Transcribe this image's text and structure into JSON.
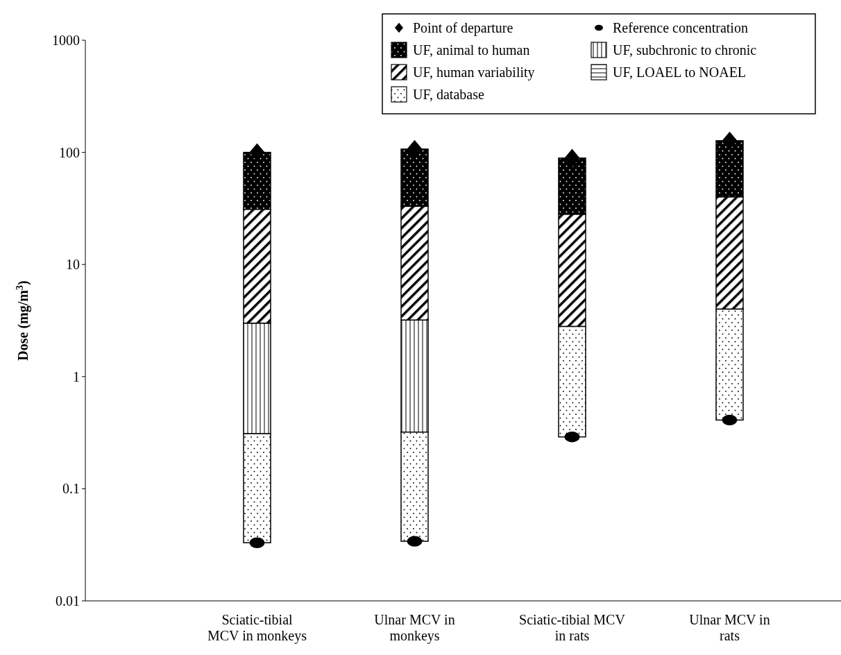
{
  "chart_data": {
    "type": "bar",
    "ylabel": "Dose (mg/m$^{3}$)",
    "categories": [
      "Sciatic-tibial\nMCV in monkeys",
      "Ulnar MCV in\nmonkeys",
      "Sciatic-tibial MCV\nin rats",
      "Ulnar MCV in\nrats"
    ],
    "log": "y",
    "ylim": [
      0.01,
      1000
    ],
    "yticks": [
      0.01,
      0.1,
      1,
      10,
      100,
      1000
    ],
    "grid": false,
    "legend": "top right",
    "series": [
      {
        "name": "Point of departure",
        "type": "scatter",
        "marker": "diamond",
        "color": "#000000",
        "values": [
          100,
          107,
          89,
          127
        ]
      },
      {
        "name": "Reference concentration",
        "type": "scatter",
        "marker": "circle",
        "color": "#000000",
        "values": [
          0.033,
          0.034,
          0.29,
          0.41
        ]
      },
      {
        "name": "UF, animal to human",
        "color": "#000000",
        "base": [
          31,
          33,
          28,
          40
        ],
        "values": [
          69,
          74,
          61,
          87
        ]
      },
      {
        "name": "UF, subchronic to chronic",
        "color": "#000000",
        "base": [
          0.31,
          0.32,
          null,
          null
        ],
        "values": [
          2.69,
          2.88,
          null,
          null
        ]
      },
      {
        "name": "UF, human variability",
        "color": "#000000",
        "base": [
          3.0,
          3.2,
          2.8,
          4.0
        ],
        "values": [
          28,
          29.8,
          25.2,
          36
        ]
      },
      {
        "name": "UF, LOAEL to NOAEL",
        "color": "#000000",
        "base": [
          null,
          null,
          null,
          null
        ],
        "values": [
          null,
          null,
          null,
          null
        ]
      },
      {
        "name": "UF, database",
        "color": "#000000",
        "base": [
          0.033,
          0.034,
          0.29,
          0.41
        ],
        "values": [
          0.277,
          0.286,
          2.51,
          3.59
        ]
      }
    ]
  }
}
